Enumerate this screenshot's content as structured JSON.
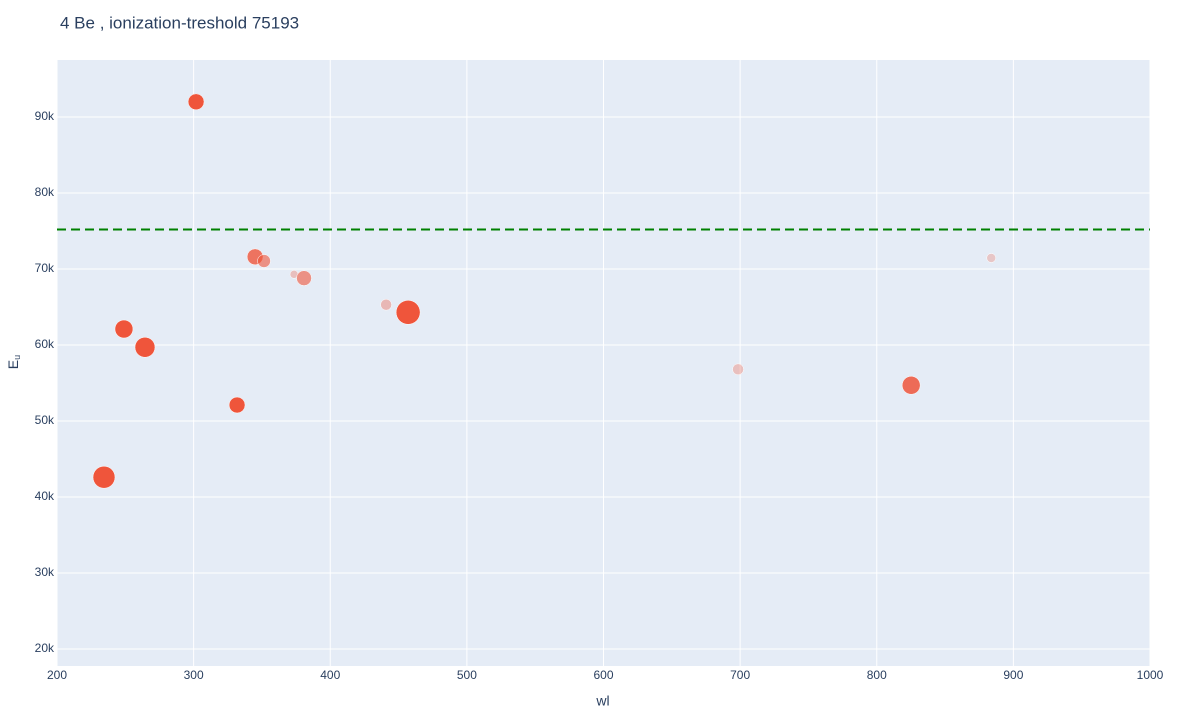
{
  "chart_data": {
    "type": "scatter",
    "title": "4 Be , ionization-treshold 75193",
    "x_label": "wl",
    "y_label": "E",
    "y_label_sub": "u",
    "series": [
      {
        "color": "#EF553B",
        "x": [
          234.4,
          249,
          264.4,
          301.8,
          331.8,
          345,
          351.5,
          373.5,
          380.8,
          440.9,
          457,
          698.5,
          825.2,
          883.8
        ],
        "values": [
          42600,
          62100,
          59700,
          92000,
          52100,
          71600,
          71050,
          69300,
          68800,
          65300,
          64300,
          56800,
          54700,
          71450
        ],
        "sizes": [
          22,
          18,
          20,
          16,
          16,
          16,
          13,
          8,
          15,
          11,
          24,
          11,
          18,
          9
        ],
        "opacities": [
          1,
          1,
          1,
          1,
          1,
          0.8,
          0.6,
          0.3,
          0.6,
          0.35,
          1,
          0.3,
          0.85,
          0.25
        ]
      }
    ],
    "threshold": 75193,
    "threshold_color": "green",
    "xlim": [
      200,
      1000
    ],
    "xticks": [
      200,
      300,
      400,
      500,
      600,
      700,
      800,
      900,
      1000
    ],
    "ylim": [
      17760,
      97500
    ],
    "yticks": [
      {
        "value": 20000,
        "label": "20k"
      },
      {
        "value": 30000,
        "label": "30k"
      },
      {
        "value": 40000,
        "label": "40k"
      },
      {
        "value": 50000,
        "label": "50k"
      },
      {
        "value": 60000,
        "label": "60k"
      },
      {
        "value": 70000,
        "label": "70k"
      },
      {
        "value": 80000,
        "label": "80k"
      },
      {
        "value": 90000,
        "label": "90k"
      }
    ],
    "grid": true
  }
}
